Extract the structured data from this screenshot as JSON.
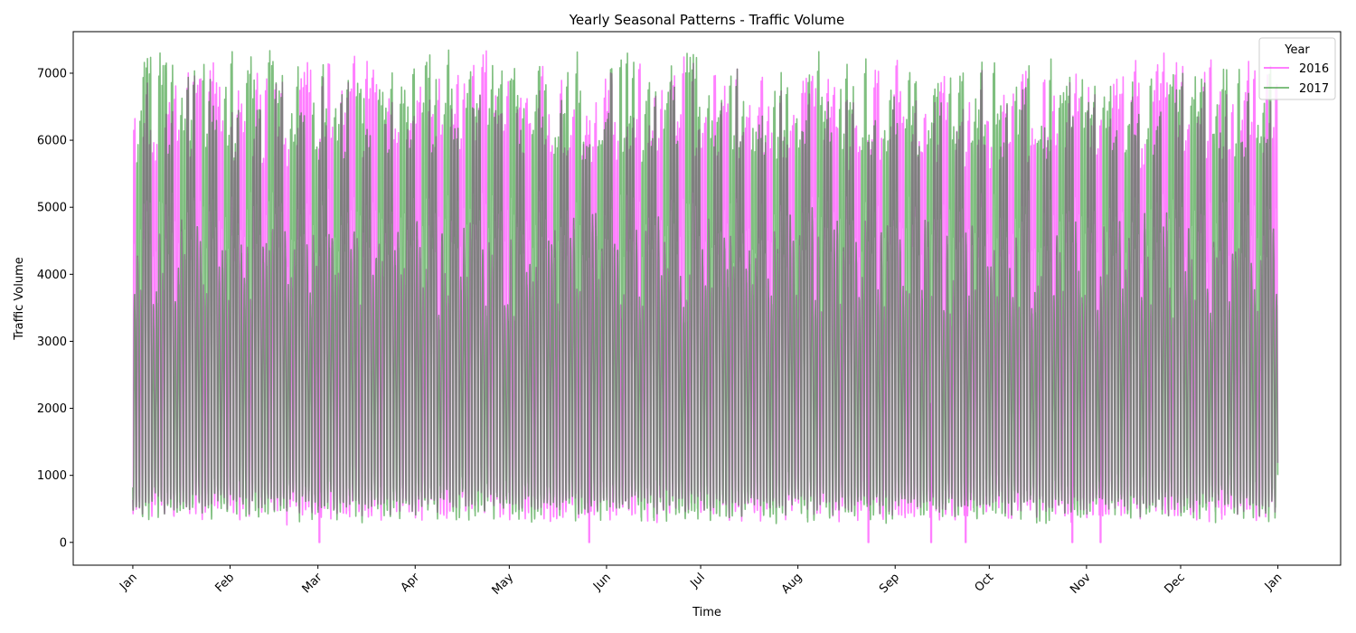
{
  "chart_data": {
    "type": "line",
    "title": "Yearly Seasonal Patterns - Traffic Volume",
    "xlabel": "Time",
    "ylabel": "Traffic Volume",
    "x_ticks": [
      "Jan",
      "Feb",
      "Mar",
      "Apr",
      "May",
      "Jun",
      "Jul",
      "Aug",
      "Sep",
      "Oct",
      "Nov",
      "Dec",
      "Jan"
    ],
    "y_ticks": [
      0,
      1000,
      2000,
      3000,
      4000,
      5000,
      6000,
      7000
    ],
    "ylim": [
      -340,
      7620
    ],
    "xlim_days": [
      -19,
      385
    ],
    "grid": false,
    "legend": {
      "title": "Year",
      "placement": "top-right"
    },
    "series": [
      {
        "name": "2016",
        "color": "#ff00ff",
        "alpha": 0.5,
        "pattern": "hourly traffic with daily cycle",
        "weekday_peak_range": [
          5800,
          7250
        ],
        "weekend_peak_range": [
          3600,
          5200
        ],
        "night_low_range": [
          250,
          600
        ],
        "outage_dips_to": 0
      },
      {
        "name": "2017",
        "color": "#008000",
        "alpha": 0.5,
        "pattern": "hourly traffic with daily cycle",
        "weekday_peak_range": [
          5900,
          7280
        ],
        "weekend_peak_range": [
          3700,
          5300
        ],
        "night_low_range": [
          250,
          600
        ],
        "outage_dips_to": null
      }
    ]
  }
}
